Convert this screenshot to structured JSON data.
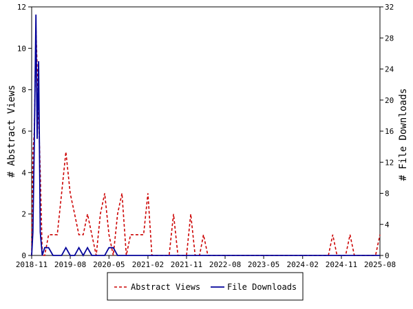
{
  "chart_data": {
    "type": "line",
    "x_ticks": [
      "2018-11",
      "2019-08",
      "2020-05",
      "2021-02",
      "2021-11",
      "2022-08",
      "2023-05",
      "2024-02",
      "2024-11",
      "2025-08"
    ],
    "x_range": [
      "2018-11",
      "2025-08"
    ],
    "left_axis": {
      "label": "# Abstract Views",
      "ylim": [
        0,
        12
      ],
      "ticks": [
        0,
        2,
        4,
        6,
        8,
        10,
        12
      ]
    },
    "right_axis": {
      "label": "# File Downloads",
      "ylim": [
        0,
        32
      ],
      "ticks": [
        0,
        4,
        8,
        12,
        16,
        20,
        24,
        28,
        32
      ]
    },
    "grid": false,
    "legend_position": "bottom",
    "series": [
      {
        "name": "Abstract Views",
        "axis": "left",
        "color": "#cc0000",
        "style": "dashed",
        "points": [
          [
            "2018-11-01",
            0
          ],
          [
            "2018-11-10",
            5
          ],
          [
            "2018-11-20",
            6
          ],
          [
            "2018-12-01",
            11
          ],
          [
            "2018-12-15",
            8
          ],
          [
            "2019-01-01",
            4
          ],
          [
            "2019-01-15",
            0
          ],
          [
            "2019-02-01",
            0
          ],
          [
            "2019-02-15",
            0.5
          ],
          [
            "2019-03-01",
            1
          ],
          [
            "2019-04-01",
            1
          ],
          [
            "2019-05-01",
            1
          ],
          [
            "2019-06-01",
            3
          ],
          [
            "2019-07-01",
            5
          ],
          [
            "2019-08-01",
            3
          ],
          [
            "2019-09-01",
            2
          ],
          [
            "2019-10-01",
            1
          ],
          [
            "2019-11-01",
            1
          ],
          [
            "2019-12-01",
            2
          ],
          [
            "2020-01-01",
            1
          ],
          [
            "2020-02-01",
            0
          ],
          [
            "2020-03-01",
            2
          ],
          [
            "2020-04-01",
            3
          ],
          [
            "2020-05-01",
            1
          ],
          [
            "2020-06-01",
            0
          ],
          [
            "2020-07-01",
            2
          ],
          [
            "2020-08-01",
            3
          ],
          [
            "2020-09-01",
            0
          ],
          [
            "2020-10-01",
            1
          ],
          [
            "2020-11-01",
            1
          ],
          [
            "2020-12-01",
            1
          ],
          [
            "2021-01-01",
            1
          ],
          [
            "2021-02-01",
            3
          ],
          [
            "2021-03-01",
            0
          ],
          [
            "2021-04-01",
            0
          ],
          [
            "2021-05-01",
            0
          ],
          [
            "2021-06-01",
            0
          ],
          [
            "2021-07-01",
            0
          ],
          [
            "2021-08-01",
            2
          ],
          [
            "2021-09-01",
            0
          ],
          [
            "2021-10-01",
            0
          ],
          [
            "2021-11-01",
            0
          ],
          [
            "2021-12-01",
            2
          ],
          [
            "2022-01-01",
            0
          ],
          [
            "2022-02-01",
            0
          ],
          [
            "2022-03-01",
            1
          ],
          [
            "2022-04-01",
            0
          ],
          [
            "2022-08-01",
            0
          ],
          [
            "2023-05-01",
            0
          ],
          [
            "2024-02-01",
            0
          ],
          [
            "2024-08-01",
            0
          ],
          [
            "2024-09-01",
            1
          ],
          [
            "2024-10-01",
            0
          ],
          [
            "2024-11-01",
            0
          ],
          [
            "2024-12-01",
            0
          ],
          [
            "2025-01-01",
            1
          ],
          [
            "2025-02-01",
            0
          ],
          [
            "2025-03-01",
            0
          ],
          [
            "2025-07-01",
            0
          ],
          [
            "2025-08-01",
            1
          ]
        ]
      },
      {
        "name": "File Downloads",
        "axis": "right",
        "color": "#000099",
        "style": "solid",
        "points": [
          [
            "2018-11-01",
            0
          ],
          [
            "2018-11-10",
            3
          ],
          [
            "2018-11-20",
            15
          ],
          [
            "2018-12-01",
            31
          ],
          [
            "2018-12-10",
            15
          ],
          [
            "2018-12-20",
            25
          ],
          [
            "2019-01-01",
            3
          ],
          [
            "2019-01-15",
            0
          ],
          [
            "2019-02-01",
            1
          ],
          [
            "2019-03-01",
            1
          ],
          [
            "2019-04-01",
            0
          ],
          [
            "2019-05-01",
            0
          ],
          [
            "2019-06-01",
            0
          ],
          [
            "2019-07-01",
            1
          ],
          [
            "2019-08-01",
            0
          ],
          [
            "2019-09-01",
            0
          ],
          [
            "2019-10-01",
            1
          ],
          [
            "2019-11-01",
            0
          ],
          [
            "2019-12-01",
            1
          ],
          [
            "2020-01-01",
            0
          ],
          [
            "2020-02-01",
            0
          ],
          [
            "2020-03-01",
            0
          ],
          [
            "2020-04-01",
            0
          ],
          [
            "2020-05-01",
            1
          ],
          [
            "2020-06-01",
            1
          ],
          [
            "2020-07-01",
            0
          ],
          [
            "2025-08-01",
            0
          ]
        ]
      }
    ]
  }
}
